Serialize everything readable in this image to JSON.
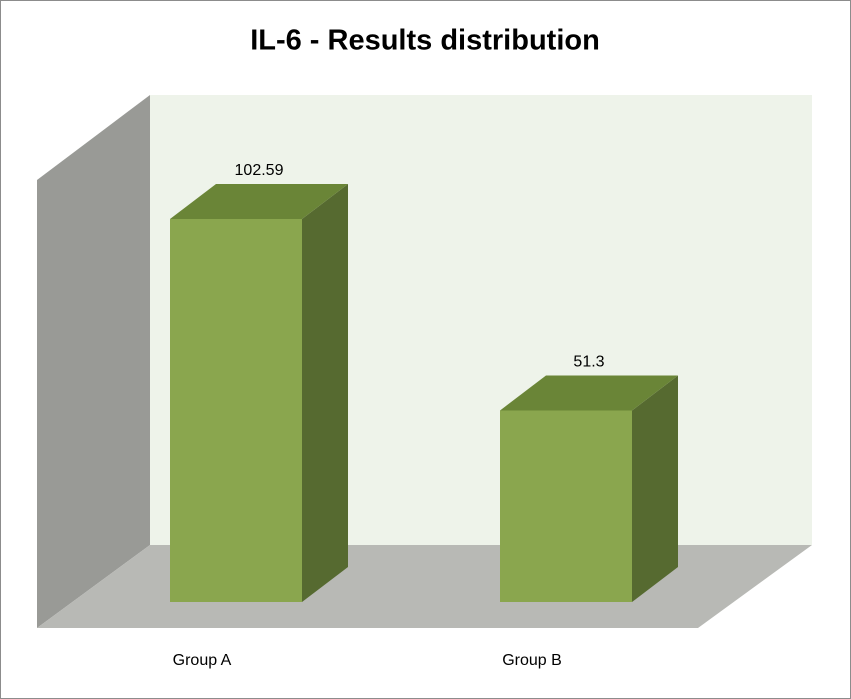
{
  "chart_data": {
    "type": "bar3d",
    "title": "IL-6 - Results distribution",
    "categories": [
      "Group A",
      "Group B"
    ],
    "values": [
      102.59,
      51.3
    ],
    "color": "#8aa64e"
  }
}
